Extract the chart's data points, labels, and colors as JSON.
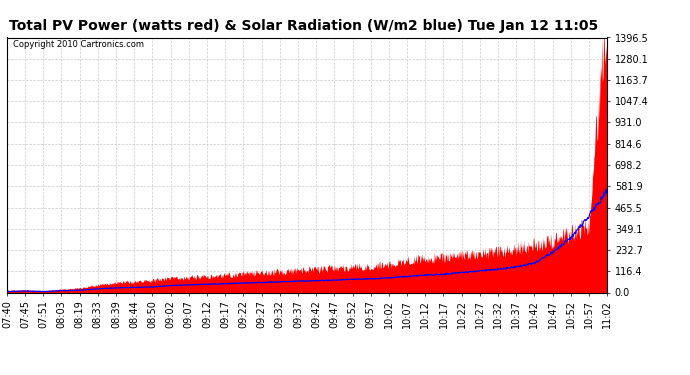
{
  "title": "Total PV Power (watts red) & Solar Radiation (W/m2 blue) Tue Jan 12 11:05",
  "copyright": "Copyright 2010 Cartronics.com",
  "ymin": 0.0,
  "ymax": 1396.5,
  "yticks": [
    0.0,
    116.4,
    232.7,
    349.1,
    465.5,
    581.9,
    698.2,
    814.6,
    931.0,
    1047.4,
    1163.7,
    1280.1,
    1396.5
  ],
  "xtick_labels": [
    "07:40",
    "07:45",
    "07:51",
    "08:03",
    "08:19",
    "08:33",
    "08:39",
    "08:44",
    "08:50",
    "09:02",
    "09:07",
    "09:12",
    "09:17",
    "09:22",
    "09:27",
    "09:32",
    "09:37",
    "09:42",
    "09:47",
    "09:52",
    "09:57",
    "10:02",
    "10:07",
    "10:12",
    "10:17",
    "10:22",
    "10:27",
    "10:32",
    "10:37",
    "10:42",
    "10:47",
    "10:52",
    "10:57",
    "11:02"
  ],
  "background_color": "#ffffff",
  "plot_bg_color": "#ffffff",
  "grid_color": "#cccccc",
  "red_color": "#ff0000",
  "blue_color": "#0000ff",
  "title_fontsize": 10,
  "tick_fontsize": 7,
  "red_base": [
    10,
    12,
    8,
    15,
    20,
    35,
    45,
    50,
    55,
    65,
    70,
    75,
    80,
    85,
    90,
    95,
    100,
    105,
    110,
    115,
    120,
    130,
    145,
    155,
    160,
    170,
    175,
    185,
    200,
    220,
    240,
    270,
    310,
    1396
  ],
  "blue_base": [
    5,
    8,
    5,
    10,
    12,
    20,
    25,
    28,
    30,
    38,
    42,
    45,
    48,
    52,
    55,
    58,
    62,
    65,
    68,
    72,
    75,
    80,
    88,
    95,
    100,
    110,
    118,
    128,
    140,
    160,
    220,
    300,
    420,
    560
  ]
}
